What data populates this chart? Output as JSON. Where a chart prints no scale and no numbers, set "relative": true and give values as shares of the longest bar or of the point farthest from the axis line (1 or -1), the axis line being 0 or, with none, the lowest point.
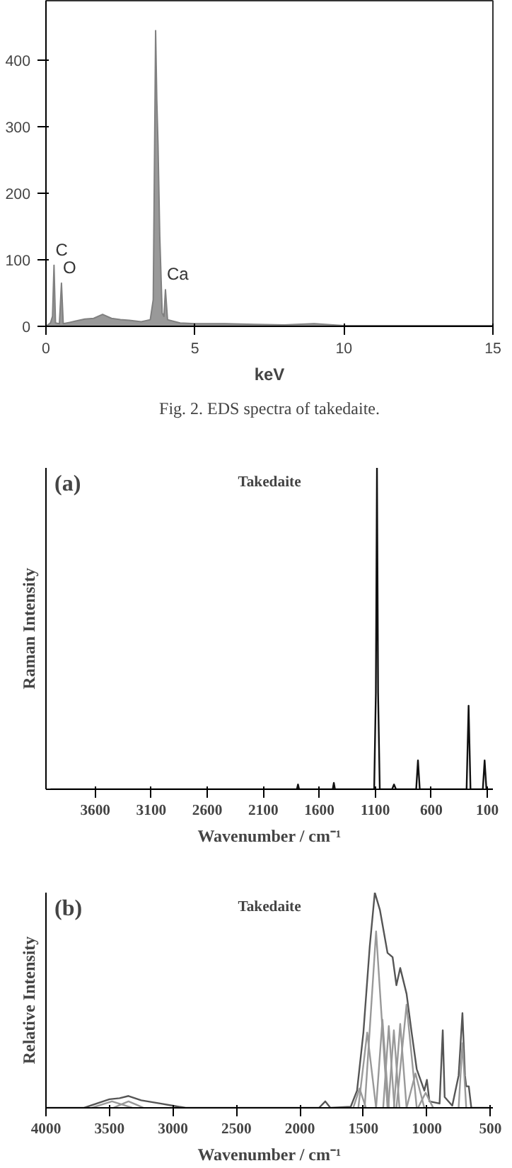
{
  "chart_data": [
    {
      "type": "area",
      "xlabel": "keV",
      "xlim": [
        0,
        15
      ],
      "ylim": [
        0,
        490
      ],
      "xticks": [
        0,
        5,
        10,
        15
      ],
      "yticks": [
        0,
        100,
        200,
        300,
        400
      ],
      "x": [
        0,
        0.15,
        0.22,
        0.27,
        0.32,
        0.45,
        0.52,
        0.58,
        0.8,
        1.0,
        1.3,
        1.6,
        1.9,
        2.2,
        2.5,
        2.8,
        3.2,
        3.5,
        3.6,
        3.66,
        3.68,
        3.72,
        3.76,
        3.82,
        3.9,
        3.96,
        4.01,
        4.08,
        4.5,
        5,
        6,
        7,
        8,
        9,
        10,
        12,
        15
      ],
      "series": [
        {
          "color": "#808080",
          "values": [
            0,
            5,
            15,
            92,
            5,
            4,
            65,
            4,
            6,
            8,
            11,
            12,
            18,
            12,
            10,
            9,
            7,
            10,
            40,
            340,
            445,
            340,
            275,
            135,
            20,
            15,
            55,
            10,
            5,
            4,
            4,
            3,
            2,
            4,
            1,
            1,
            1
          ]
        }
      ],
      "annotations": [
        {
          "text": "C",
          "x": 0.27,
          "y": 92
        },
        {
          "text": "O",
          "x": 0.52,
          "y": 65
        },
        {
          "text": "Ca",
          "x": 4.01,
          "y": 55
        },
        "Fig. 2. EDS spectra of takedaite."
      ]
    },
    {
      "type": "line",
      "title": "Takedaite",
      "xlabel": "Wavenumber / cm⁻¹",
      "ylabel": "Raman Intensity",
      "relative": true,
      "xlim": [
        4040,
        50
      ],
      "xticks": [
        3600,
        3100,
        2600,
        2100,
        1600,
        1100,
        600,
        100
      ],
      "x": [
        4000,
        1800,
        1790,
        1780,
        1480,
        1470,
        1460,
        1110,
        1095,
        1085,
        1075,
        1060,
        950,
        933,
        915,
        735,
        719,
        703,
        285,
        267,
        250,
        140,
        124,
        108,
        50
      ],
      "series": [
        {
          "color": "#111111",
          "values": [
            0,
            0,
            0.015,
            0,
            0,
            0.02,
            0,
            0,
            0.3,
            1,
            0.3,
            0,
            0,
            0.015,
            0,
            0,
            0.09,
            0,
            0,
            0.26,
            0,
            0,
            0.09,
            0,
            0
          ]
        }
      ],
      "annotations": [
        "(a)"
      ]
    },
    {
      "type": "line",
      "title": "Takedaite",
      "xlabel": "Wavenumber / cm⁻¹",
      "ylabel": "Relative Intensity",
      "relative": true,
      "xlim": [
        4000,
        480
      ],
      "xticks": [
        4000,
        3500,
        3000,
        2500,
        2000,
        1500,
        1000,
        500
      ],
      "series": [
        {
          "color": "#555555",
          "x": [
            4000,
            3700,
            3600,
            3500,
            3420,
            3350,
            3250,
            3100,
            3000,
            2900,
            1850,
            1800,
            1760,
            1600,
            1550,
            1500,
            1450,
            1410,
            1370,
            1310,
            1270,
            1240,
            1210,
            1160,
            1120,
            1080,
            1020,
            1000,
            980,
            900,
            875,
            860,
            800,
            750,
            720,
            700,
            690,
            670,
            650,
            500
          ],
          "values": [
            0,
            0,
            0.02,
            0.04,
            0.045,
            0.055,
            0.035,
            0.02,
            0.01,
            0,
            0,
            0.03,
            0,
            0.005,
            0.08,
            0.35,
            0.75,
            1,
            0.92,
            0.72,
            0.7,
            0.57,
            0.65,
            0.53,
            0.35,
            0.18,
            0.08,
            0.13,
            0.03,
            0.02,
            0.36,
            0.05,
            0.01,
            0.15,
            0.44,
            0.15,
            0.1,
            0.1,
            0,
            0
          ]
        },
        {
          "color": "#999999",
          "x": [
            1490,
            1445,
            1400,
            1355,
            1310
          ],
          "values": [
            0,
            0.41,
            0.82,
            0.41,
            0
          ]
        },
        {
          "color": "#999999",
          "x": [
            1540,
            1505,
            1470,
            1435,
            1400
          ],
          "values": [
            0,
            0.175,
            0.35,
            0.175,
            0
          ]
        },
        {
          "color": "#999999",
          "x": [
            1580,
            1555,
            1530,
            1505,
            1480
          ],
          "values": [
            0,
            0.045,
            0.09,
            0.045,
            0
          ]
        },
        {
          "color": "#999999",
          "x": [
            1400,
            1375,
            1350,
            1325,
            1300
          ],
          "values": [
            0,
            0.205,
            0.41,
            0.205,
            0
          ]
        },
        {
          "color": "#999999",
          "x": [
            1344,
            1322,
            1300,
            1278,
            1256
          ],
          "values": [
            0,
            0.19,
            0.38,
            0.19,
            0
          ]
        },
        {
          "color": "#999999",
          "x": [
            1304,
            1282,
            1260,
            1238,
            1216
          ],
          "values": [
            0,
            0.18,
            0.36,
            0.18,
            0
          ]
        },
        {
          "color": "#999999",
          "x": [
            1260,
            1235,
            1210,
            1185,
            1160
          ],
          "values": [
            0,
            0.195,
            0.39,
            0.195,
            0
          ]
        },
        {
          "color": "#999999",
          "x": [
            1240,
            1200,
            1160,
            1120,
            1080
          ],
          "values": [
            0,
            0.24,
            0.48,
            0.24,
            0
          ]
        },
        {
          "color": "#999999",
          "x": [
            1160,
            1125,
            1090,
            1055,
            1020
          ],
          "values": [
            0,
            0.08,
            0.16,
            0.08,
            0
          ]
        },
        {
          "color": "#999999",
          "x": [
            1070,
            1040,
            1010,
            980,
            950
          ],
          "values": [
            0,
            0.035,
            0.07,
            0.035,
            0
          ]
        },
        {
          "color": "#999999",
          "x": [
            3640,
            3560,
            3480,
            3400,
            3320
          ],
          "values": [
            0,
            0.015,
            0.03,
            0.015,
            0
          ]
        },
        {
          "color": "#999999",
          "x": [
            3470,
            3410,
            3350,
            3290,
            3230
          ],
          "values": [
            0,
            0.015,
            0.03,
            0.015,
            0
          ]
        },
        {
          "color": "#999999",
          "x": [
            750,
            735,
            720,
            705,
            690
          ],
          "values": [
            0,
            0.15,
            0.3,
            0.15,
            0
          ]
        }
      ],
      "annotations": [
        "(b)"
      ]
    }
  ]
}
